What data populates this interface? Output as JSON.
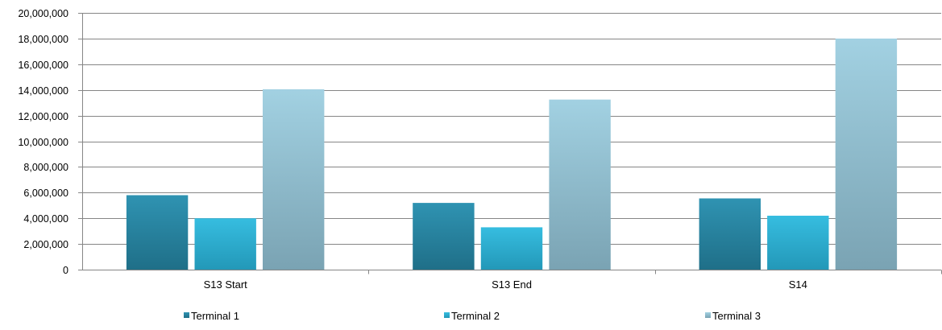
{
  "chart_data": {
    "type": "bar",
    "categories": [
      "S13 Start",
      "S13 End",
      "S14"
    ],
    "series": [
      {
        "name": "Terminal 1",
        "values": [
          5800000,
          5200000,
          5550000
        ],
        "color": "#2a7f9c"
      },
      {
        "name": "Terminal 2",
        "values": [
          4000000,
          3300000,
          4200000
        ],
        "color": "#2bb2d6"
      },
      {
        "name": "Terminal 3",
        "values": [
          14050000,
          13250000,
          18000000
        ],
        "color": "#93c6d8"
      }
    ],
    "ylim": [
      0,
      20000000
    ],
    "yticks": [
      0,
      2000000,
      4000000,
      6000000,
      8000000,
      10000000,
      12000000,
      14000000,
      16000000,
      18000000,
      20000000
    ],
    "ytick_labels": [
      "0",
      "2,000,000",
      "4,000,000",
      "6,000,000",
      "8,000,000",
      "10,000,000",
      "12,000,000",
      "14,000,000",
      "16,000,000",
      "18,000,000",
      "20,000,000"
    ],
    "grid": true,
    "legend": "bottom",
    "title": "",
    "xlabel": "",
    "ylabel": ""
  }
}
